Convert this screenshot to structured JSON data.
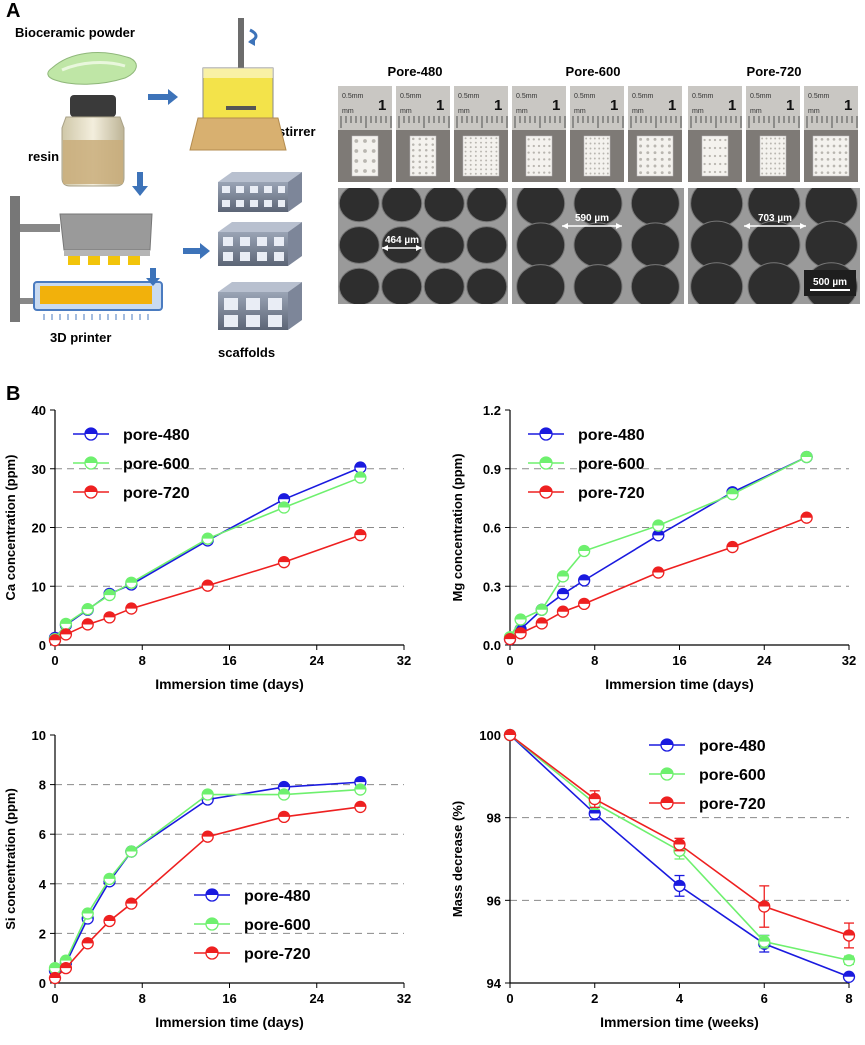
{
  "panel_a": {
    "letter": "A",
    "labels": {
      "powder": "Bioceramic powder",
      "resin": "resin",
      "stirrer": "stirrer",
      "printer": "3D printer",
      "scaffolds": "scaffolds"
    },
    "pore_titles": [
      "Pore-480",
      "Pore-600",
      "Pore-720"
    ],
    "ruler_text": [
      "0.5mm",
      "1",
      "mm"
    ],
    "sem_measurements": [
      "464 µm",
      "590 µm",
      "703 µm"
    ],
    "scale_bar": "500 µm"
  },
  "panel_b": {
    "letter": "B"
  },
  "colors": {
    "pore480": "#1a1adf",
    "pore600": "#6ef06e",
    "pore720": "#ee2020"
  },
  "chart_data": [
    {
      "type": "line",
      "ylabel": "Ca concentration (ppm)",
      "xlabel": "Immersion time (days)",
      "xlim": [
        0,
        32
      ],
      "ylim": [
        0,
        40
      ],
      "xticks": [
        0,
        8,
        16,
        24,
        32
      ],
      "yticks": [
        0,
        10,
        20,
        30,
        40
      ],
      "xtick_labels": [
        "0",
        "8",
        "16",
        "24",
        "32"
      ],
      "ytick_labels": [
        "0",
        "10",
        "20",
        "30",
        "40"
      ],
      "dashed_grid": [
        10,
        20,
        30
      ],
      "legend": "top-left",
      "series": [
        {
          "name": "pore-480",
          "x": [
            0,
            1,
            3,
            5,
            7,
            14,
            21,
            28
          ],
          "y": [
            1.2,
            3.4,
            6.0,
            8.7,
            10.3,
            17.8,
            24.8,
            30.2
          ]
        },
        {
          "name": "pore-600",
          "x": [
            0,
            1,
            3,
            5,
            7,
            14,
            21,
            28
          ],
          "y": [
            1.0,
            3.6,
            6.1,
            8.5,
            10.6,
            18.1,
            23.4,
            28.5
          ]
        },
        {
          "name": "pore-720",
          "x": [
            0,
            1,
            3,
            5,
            7,
            14,
            21,
            28
          ],
          "y": [
            0.8,
            1.8,
            3.5,
            4.7,
            6.2,
            10.1,
            14.1,
            18.7
          ]
        }
      ]
    },
    {
      "type": "line",
      "ylabel": "Mg concentration (ppm)",
      "xlabel": "Immersion time (days)",
      "xlim": [
        0,
        32
      ],
      "ylim": [
        0,
        1.2
      ],
      "xticks": [
        0,
        8,
        16,
        24,
        32
      ],
      "yticks": [
        0,
        0.3,
        0.6,
        0.9,
        1.2
      ],
      "xtick_labels": [
        "0",
        "8",
        "16",
        "24",
        "32"
      ],
      "ytick_labels": [
        "0.0",
        "0.3",
        "0.6",
        "0.9",
        "1.2"
      ],
      "dashed_grid": [
        0.3,
        0.6,
        0.9
      ],
      "legend": "top-left",
      "series": [
        {
          "name": "pore-480",
          "x": [
            0,
            1,
            3,
            5,
            7,
            14,
            21,
            28
          ],
          "y": [
            0.03,
            0.08,
            0.18,
            0.26,
            0.33,
            0.56,
            0.78,
            0.96
          ]
        },
        {
          "name": "pore-600",
          "x": [
            0,
            1,
            3,
            5,
            7,
            14,
            21,
            28
          ],
          "y": [
            0.04,
            0.13,
            0.18,
            0.35,
            0.48,
            0.61,
            0.77,
            0.96
          ]
        },
        {
          "name": "pore-720",
          "x": [
            0,
            1,
            3,
            5,
            7,
            14,
            21,
            28
          ],
          "y": [
            0.03,
            0.06,
            0.11,
            0.17,
            0.21,
            0.37,
            0.5,
            0.65
          ]
        }
      ]
    },
    {
      "type": "line",
      "ylabel": "Si concentration (ppm)",
      "xlabel": "Immersion time (days)",
      "xlim": [
        0,
        32
      ],
      "ylim": [
        0,
        10
      ],
      "xticks": [
        0,
        8,
        16,
        24,
        32
      ],
      "yticks": [
        0,
        2,
        4,
        6,
        8,
        10
      ],
      "xtick_labels": [
        "0",
        "8",
        "16",
        "24",
        "32"
      ],
      "ytick_labels": [
        "0",
        "2",
        "4",
        "6",
        "8",
        "10"
      ],
      "dashed_grid": [
        2,
        4,
        6,
        8
      ],
      "legend": "bottom-right",
      "series": [
        {
          "name": "pore-480",
          "x": [
            0,
            1,
            3,
            5,
            7,
            14,
            21,
            28
          ],
          "y": [
            0.5,
            0.8,
            2.6,
            4.1,
            5.3,
            7.4,
            7.9,
            8.1
          ]
        },
        {
          "name": "pore-600",
          "x": [
            0,
            1,
            3,
            5,
            7,
            14,
            21,
            28
          ],
          "y": [
            0.6,
            0.9,
            2.8,
            4.2,
            5.3,
            7.6,
            7.6,
            7.8
          ]
        },
        {
          "name": "pore-720",
          "x": [
            0,
            1,
            3,
            5,
            7,
            14,
            21,
            28
          ],
          "y": [
            0.2,
            0.6,
            1.6,
            2.5,
            3.2,
            5.9,
            6.7,
            7.1
          ]
        }
      ]
    },
    {
      "type": "line",
      "ylabel": "Mass decrease (%)",
      "xlabel": "Immersion time (weeks)",
      "xlim": [
        0,
        8
      ],
      "ylim": [
        94,
        100
      ],
      "xticks": [
        0,
        2,
        4,
        6,
        8
      ],
      "yticks": [
        94,
        96,
        98,
        100
      ],
      "xtick_labels": [
        "0",
        "2",
        "4",
        "6",
        "8"
      ],
      "ytick_labels": [
        "94",
        "96",
        "98",
        "100"
      ],
      "dashed_grid": [
        96,
        98
      ],
      "legend": "top-right",
      "series": [
        {
          "name": "pore-480",
          "x": [
            0,
            2,
            4,
            6,
            8
          ],
          "y": [
            100,
            98.1,
            96.35,
            94.95,
            94.15
          ],
          "err": [
            0,
            0.15,
            0.25,
            0.2,
            0.05
          ]
        },
        {
          "name": "pore-600",
          "x": [
            0,
            2,
            4,
            6,
            8
          ],
          "y": [
            100,
            98.35,
            97.2,
            95.0,
            94.55
          ],
          "err": [
            0,
            0.15,
            0.2,
            0.15,
            0.1
          ]
        },
        {
          "name": "pore-720",
          "x": [
            0,
            2,
            4,
            6,
            8
          ],
          "y": [
            100,
            98.45,
            97.35,
            95.85,
            95.15
          ],
          "err": [
            0,
            0.2,
            0.15,
            0.5,
            0.3
          ]
        }
      ]
    }
  ]
}
